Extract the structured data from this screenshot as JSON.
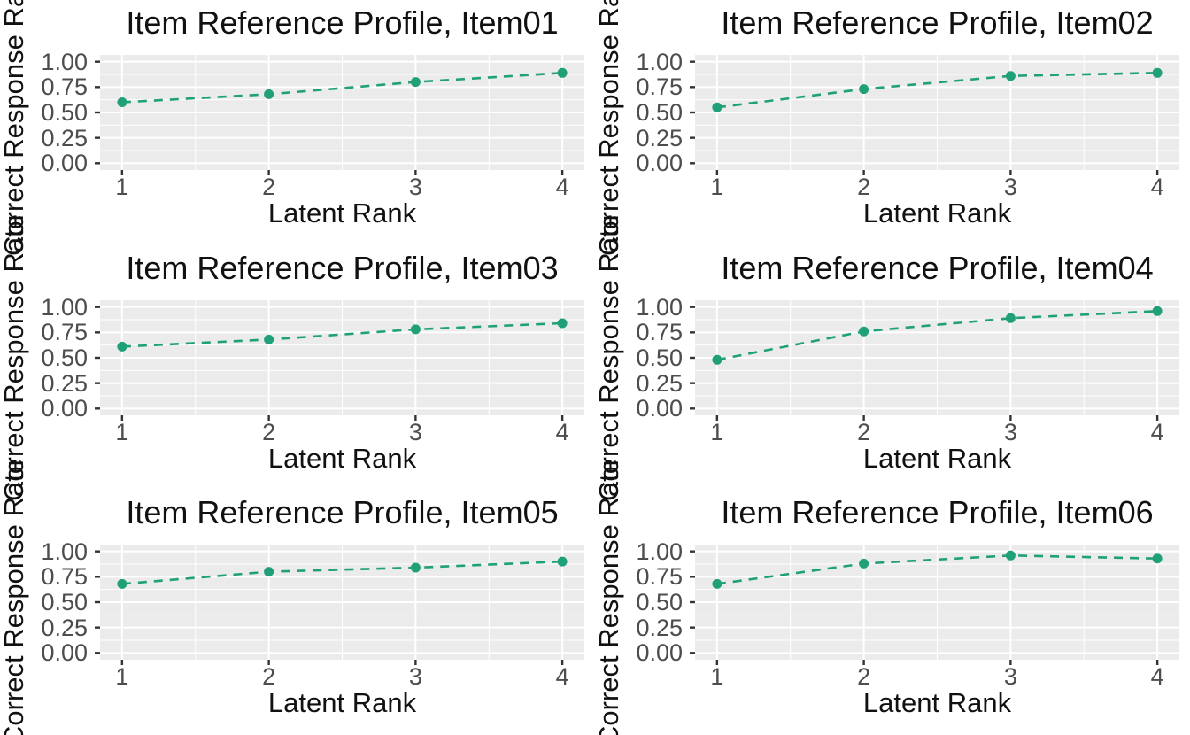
{
  "figure": {
    "layout": "2x3 grid of subplots",
    "background": "#ffffff"
  },
  "style": {
    "accent": "#20a078",
    "panel_bg": "#ebebeb",
    "grid": "#ffffff",
    "tick_mark": "#333333",
    "tick_text": "#4d4d4d",
    "text": "#111111",
    "line_dash": "10 8",
    "line_width": 2.6,
    "point_radius": 5.5
  },
  "axes": {
    "x_range": [
      0.85,
      4.15
    ],
    "y_range": [
      -0.067,
      1.067
    ],
    "x_major": [
      1,
      2,
      3,
      4
    ],
    "y_major": [
      1.0,
      0.75,
      0.5,
      0.25,
      0.0
    ],
    "x_minor": [
      1.5,
      2.5,
      3.5
    ],
    "y_minor": [
      0.125,
      0.375,
      0.625,
      0.875
    ],
    "grid": "on",
    "legend": "none"
  },
  "chart_data": [
    {
      "type": "line",
      "title": "Item Reference Profile, Item01",
      "xlabel": "Latent Rank",
      "ylabel": "Correct Response Rate",
      "x": [
        1,
        2,
        3,
        4
      ],
      "values": [
        0.6,
        0.68,
        0.8,
        0.89
      ],
      "ylim": [
        0,
        1
      ],
      "xtick_labels": [
        "1",
        "2",
        "3",
        "4"
      ],
      "ytick_labels": [
        "1.00",
        "0.75",
        "0.50",
        "0.25",
        "0.00"
      ],
      "line_style": "dashed",
      "marker": "circle"
    },
    {
      "type": "line",
      "title": "Item Reference Profile, Item02",
      "xlabel": "Latent Rank",
      "ylabel": "Correct Response Rate",
      "x": [
        1,
        2,
        3,
        4
      ],
      "values": [
        0.55,
        0.73,
        0.86,
        0.89
      ],
      "ylim": [
        0,
        1
      ],
      "xtick_labels": [
        "1",
        "2",
        "3",
        "4"
      ],
      "ytick_labels": [
        "1.00",
        "0.75",
        "0.50",
        "0.25",
        "0.00"
      ],
      "line_style": "dashed",
      "marker": "circle"
    },
    {
      "type": "line",
      "title": "Item Reference Profile, Item03",
      "xlabel": "Latent Rank",
      "ylabel": "Correct Response Rate",
      "x": [
        1,
        2,
        3,
        4
      ],
      "values": [
        0.61,
        0.68,
        0.78,
        0.84
      ],
      "ylim": [
        0,
        1
      ],
      "xtick_labels": [
        "1",
        "2",
        "3",
        "4"
      ],
      "ytick_labels": [
        "1.00",
        "0.75",
        "0.50",
        "0.25",
        "0.00"
      ],
      "line_style": "dashed",
      "marker": "circle"
    },
    {
      "type": "line",
      "title": "Item Reference Profile, Item04",
      "xlabel": "Latent Rank",
      "ylabel": "Correct Response Rate",
      "x": [
        1,
        2,
        3,
        4
      ],
      "values": [
        0.48,
        0.76,
        0.89,
        0.96
      ],
      "ylim": [
        0,
        1
      ],
      "xtick_labels": [
        "1",
        "2",
        "3",
        "4"
      ],
      "ytick_labels": [
        "1.00",
        "0.75",
        "0.50",
        "0.25",
        "0.00"
      ],
      "line_style": "dashed",
      "marker": "circle"
    },
    {
      "type": "line",
      "title": "Item Reference Profile, Item05",
      "xlabel": "Latent Rank",
      "ylabel": "Correct Response Rate",
      "x": [
        1,
        2,
        3,
        4
      ],
      "values": [
        0.68,
        0.8,
        0.84,
        0.9
      ],
      "ylim": [
        0,
        1
      ],
      "xtick_labels": [
        "1",
        "2",
        "3",
        "4"
      ],
      "ytick_labels": [
        "1.00",
        "0.75",
        "0.50",
        "0.25",
        "0.00"
      ],
      "line_style": "dashed",
      "marker": "circle"
    },
    {
      "type": "line",
      "title": "Item Reference Profile, Item06",
      "xlabel": "Latent Rank",
      "ylabel": "Correct Response Rate",
      "x": [
        1,
        2,
        3,
        4
      ],
      "values": [
        0.68,
        0.88,
        0.96,
        0.93
      ],
      "ylim": [
        0,
        1
      ],
      "xtick_labels": [
        "1",
        "2",
        "3",
        "4"
      ],
      "ytick_labels": [
        "1.00",
        "0.75",
        "0.50",
        "0.25",
        "0.00"
      ],
      "line_style": "dashed",
      "marker": "circle"
    }
  ]
}
